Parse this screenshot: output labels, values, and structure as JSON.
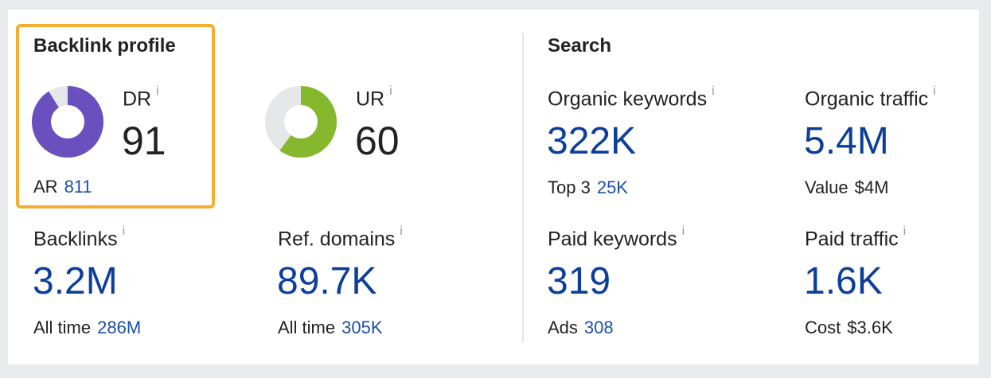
{
  "backlink_profile": {
    "title": "Backlink profile",
    "dr": {
      "label": "DR",
      "info": "i",
      "value": "91",
      "fraction": 0.91,
      "color": "#6a50bf"
    },
    "ur": {
      "label": "UR",
      "info": "i",
      "value": "60",
      "fraction": 0.6,
      "color": "#86b82e"
    },
    "ar": {
      "label": "AR",
      "value": "811"
    },
    "backlinks": {
      "label": "Backlinks",
      "info": "i",
      "value": "3.2M",
      "sub_label": "All time",
      "sub_value": "286M"
    },
    "ref_domains": {
      "label": "Ref. domains",
      "info": "i",
      "value": "89.7K",
      "sub_label": "All time",
      "sub_value": "305K"
    }
  },
  "search": {
    "title": "Search",
    "organic_keywords": {
      "label": "Organic keywords",
      "info": "i",
      "value": "322K",
      "sub_label": "Top 3",
      "sub_value": "25K"
    },
    "organic_traffic": {
      "label": "Organic traffic",
      "info": "i",
      "value": "5.4M",
      "sub_label": "Value",
      "sub_value": "$4M"
    },
    "paid_keywords": {
      "label": "Paid keywords",
      "info": "i",
      "value": "319",
      "sub_label": "Ads",
      "sub_value": "308"
    },
    "paid_traffic": {
      "label": "Paid traffic",
      "info": "i",
      "value": "1.6K",
      "sub_label": "Cost",
      "sub_value": "$3.6K"
    }
  },
  "colors": {
    "accent_blue": "#0d3f9a",
    "link_blue": "#1c4fae",
    "highlight_border": "#f5ae31",
    "donut_track": "#e6e7e9"
  }
}
